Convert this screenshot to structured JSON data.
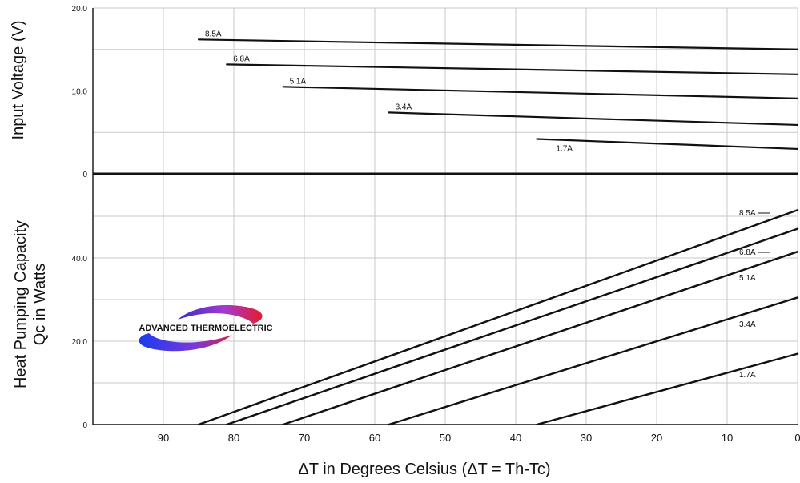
{
  "logo": {
    "text": "ADVANCED THERMOELECTRIC"
  },
  "chart_data": [
    {
      "type": "line",
      "panel": "top",
      "ylabel": "Input Voltage (V)",
      "xlabel": "ΔT in Degrees Celsius  (ΔT = Th-Tc)",
      "xlim": [
        100,
        0
      ],
      "ylim": [
        0,
        20
      ],
      "y_tick_labels": [
        "0",
        "10.0",
        "20.0"
      ],
      "grid": true,
      "series": [
        {
          "name": "8.5A",
          "x": [
            85,
            0
          ],
          "y": [
            16.2,
            15.0
          ]
        },
        {
          "name": "6.8A",
          "x": [
            81,
            0
          ],
          "y": [
            13.2,
            12.0
          ]
        },
        {
          "name": "5.1A",
          "x": [
            73,
            0
          ],
          "y": [
            10.5,
            9.1
          ]
        },
        {
          "name": "3.4A",
          "x": [
            58,
            0
          ],
          "y": [
            7.4,
            5.9
          ]
        },
        {
          "name": "1.7A",
          "x": [
            37,
            0
          ],
          "y": [
            4.2,
            3.0
          ]
        }
      ]
    },
    {
      "type": "line",
      "panel": "bottom",
      "ylabel": "Heat Pumping Capacity Qc in Watts",
      "ylabel_lines": [
        "Heat Pumping Capacity",
        "Qc in Watts"
      ],
      "xlabel": "ΔT in Degrees Celsius  (ΔT = Th-Tc)",
      "xlim": [
        100,
        0
      ],
      "ylim": [
        0,
        60
      ],
      "y_tick_labels": [
        "0",
        "20.0",
        "40.0"
      ],
      "x_tick_labels": [
        "90",
        "80",
        "70",
        "60",
        "50",
        "40",
        "30",
        "20",
        "10",
        "0"
      ],
      "grid": true,
      "series": [
        {
          "name": "8.5A",
          "x": [
            85,
            0
          ],
          "y": [
            0,
            51.5
          ]
        },
        {
          "name": "6.8A",
          "x": [
            81,
            0
          ],
          "y": [
            0,
            47.0
          ]
        },
        {
          "name": "5.1A",
          "x": [
            73,
            0
          ],
          "y": [
            0,
            41.5
          ]
        },
        {
          "name": "3.4A",
          "x": [
            58,
            0
          ],
          "y": [
            0,
            30.5
          ]
        },
        {
          "name": "1.7A",
          "x": [
            37,
            0
          ],
          "y": [
            0,
            17.0
          ]
        }
      ]
    }
  ]
}
